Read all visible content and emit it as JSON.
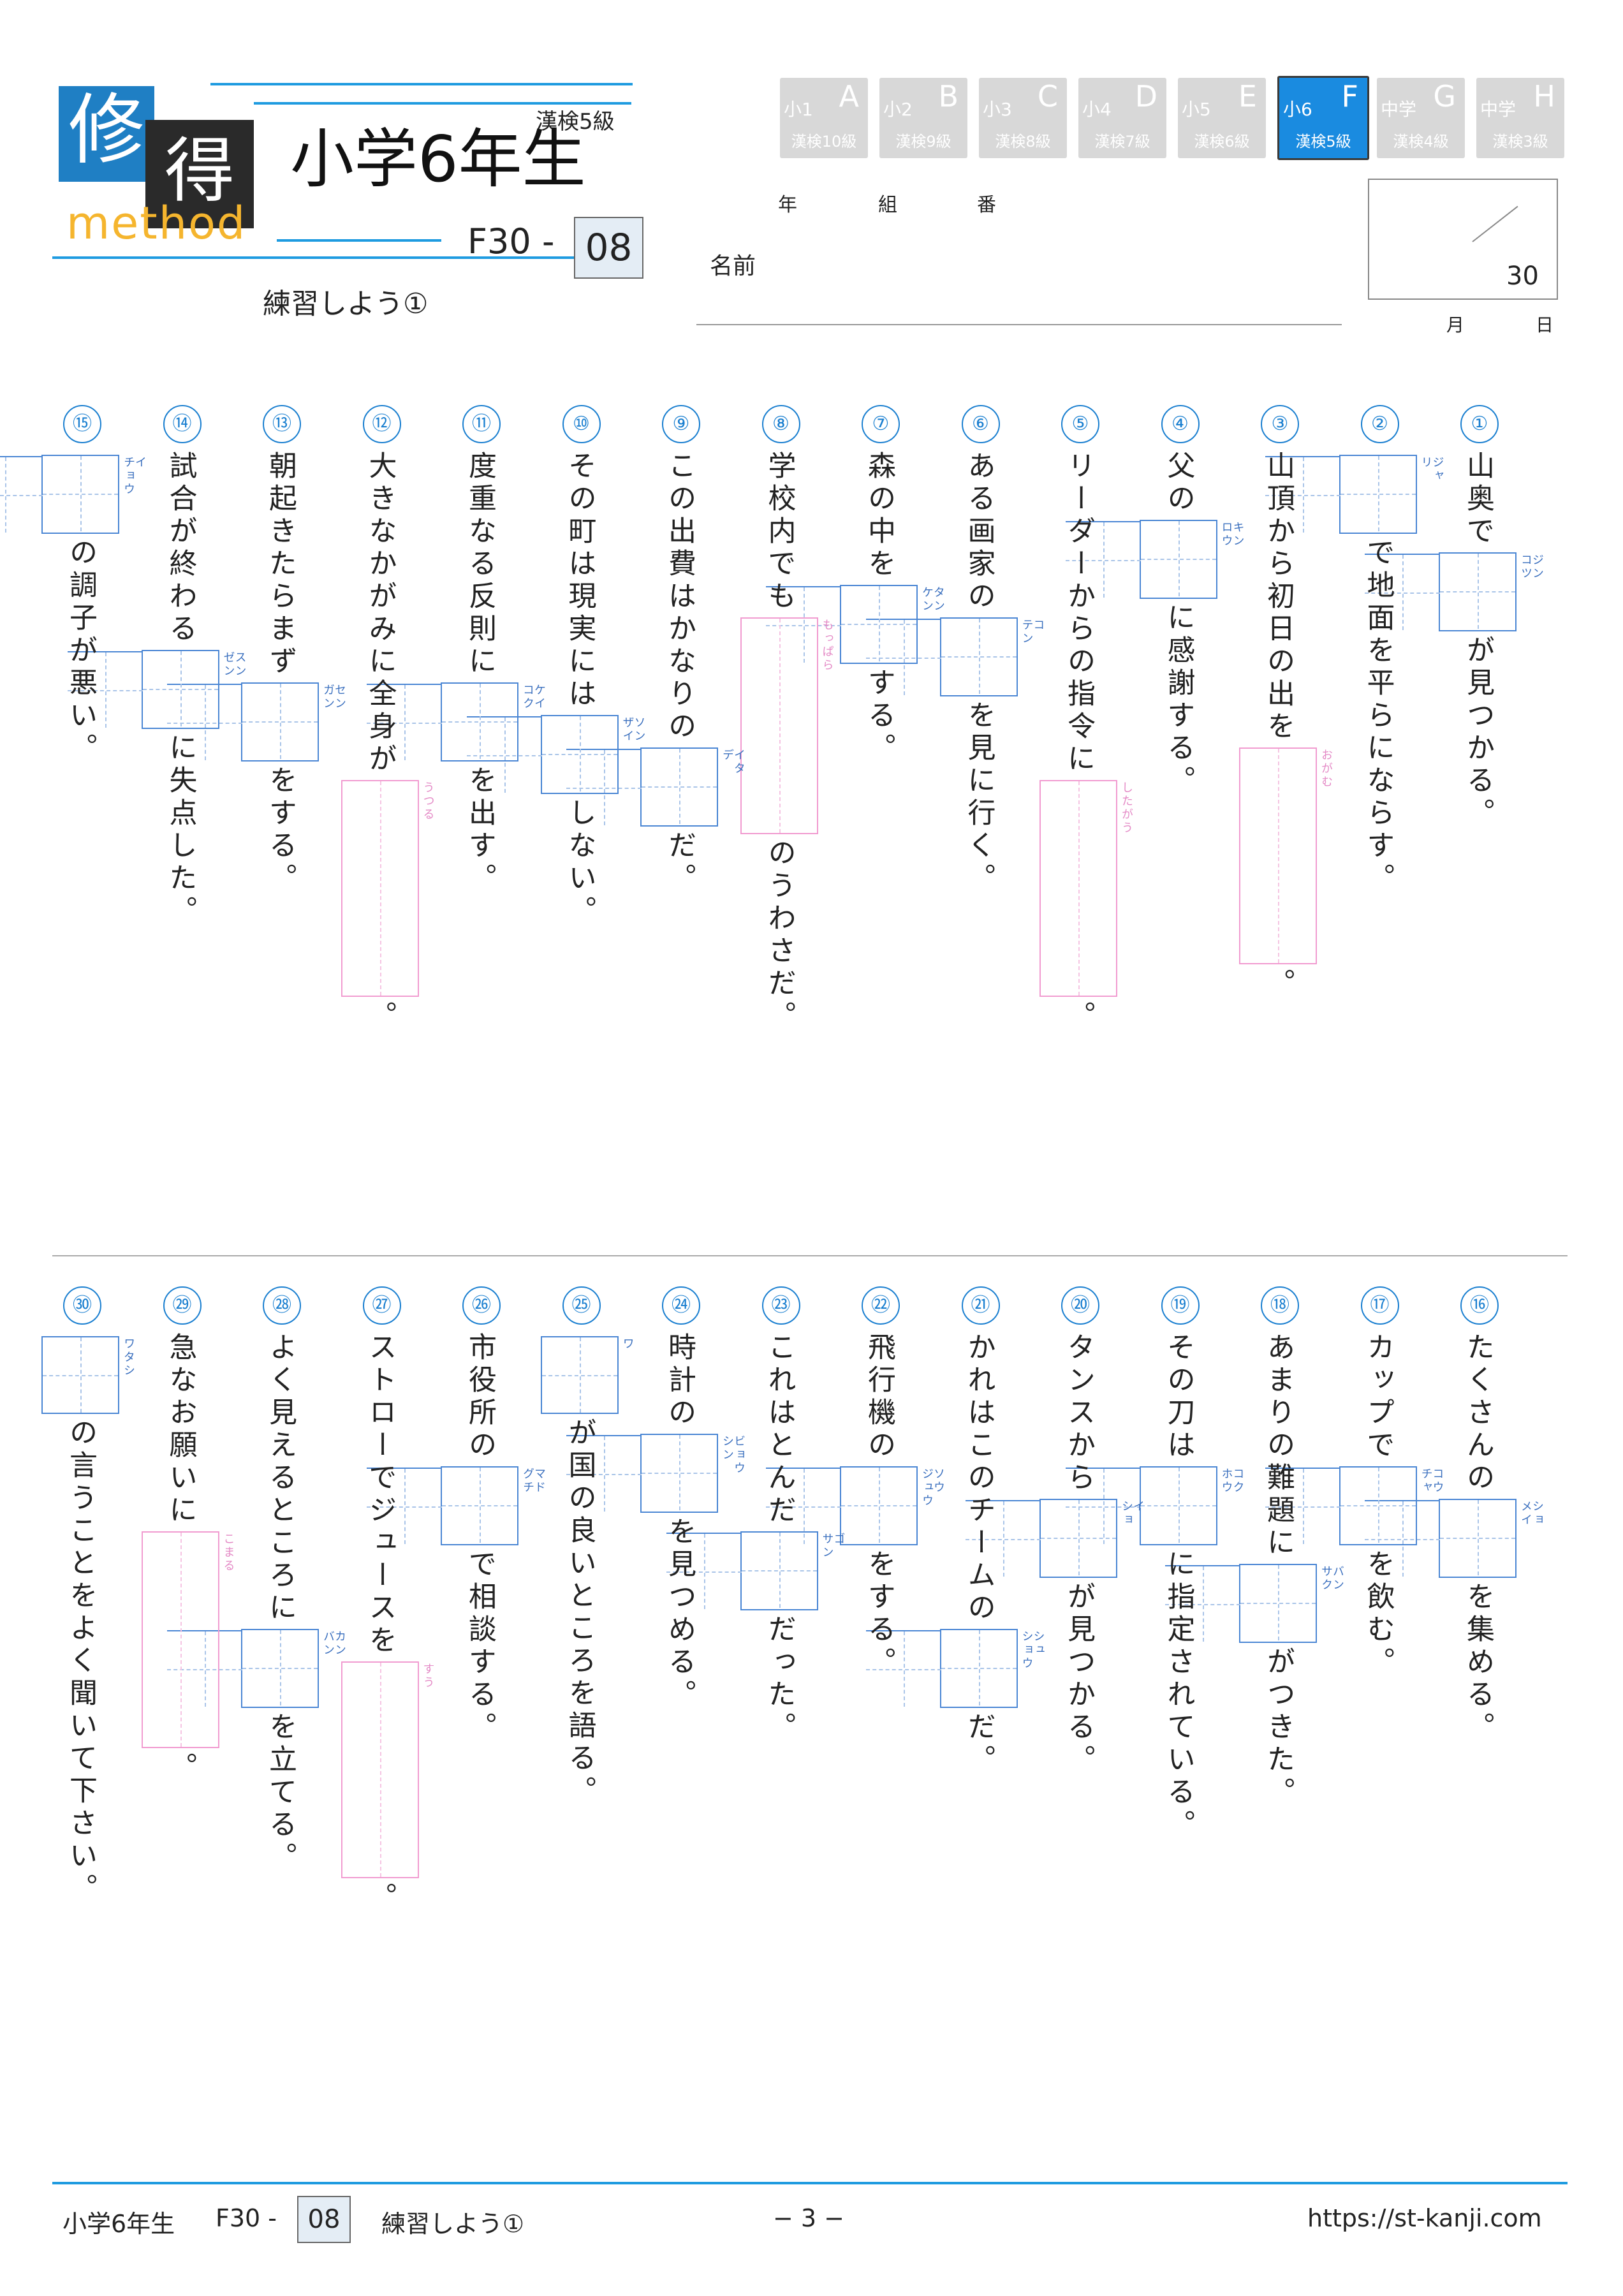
{
  "header": {
    "logo": {
      "char1": "修",
      "char2": "得",
      "word": "method"
    },
    "grade_title": "小学6年生",
    "level": "漢検5級",
    "code_prefix": "F30 -",
    "code_number": "08",
    "subtitle": "練習しよう①",
    "tabs": [
      {
        "level": "小1",
        "letter": "A",
        "kanken": "漢検10級",
        "active": false
      },
      {
        "level": "小2",
        "letter": "B",
        "kanken": "漢検9級",
        "active": false
      },
      {
        "level": "小3",
        "letter": "C",
        "kanken": "漢検8級",
        "active": false
      },
      {
        "level": "小4",
        "letter": "D",
        "kanken": "漢検7級",
        "active": false
      },
      {
        "level": "小5",
        "letter": "E",
        "kanken": "漢検6級",
        "active": false
      },
      {
        "level": "小6",
        "letter": "F",
        "kanken": "漢検5級",
        "active": true
      },
      {
        "level": "中学",
        "letter": "G",
        "kanken": "漢検4級",
        "active": false
      },
      {
        "level": "中学",
        "letter": "H",
        "kanken": "漢検3級",
        "active": false
      }
    ],
    "labels": {
      "year": "年",
      "class": "組",
      "number": "番",
      "name": "名前",
      "month": "月",
      "day": "日"
    },
    "score_total": "30"
  },
  "questions": [
    {
      "n": "①",
      "parts": [
        {
          "t": "山奥で"
        },
        {
          "box": [
            "ジン",
            "コツ"
          ]
        },
        {
          "t": "が見つかる。"
        }
      ]
    },
    {
      "n": "②",
      "parts": [
        {
          "box": [
            "ジャ",
            "リ"
          ]
        },
        {
          "t": "で地面を平らにならす。"
        }
      ]
    },
    {
      "n": "③",
      "parts": [
        {
          "t": "山頂から初日の出を"
        },
        {
          "hira": "おがむ",
          "len": 4
        },
        {
          "t": "。"
        }
      ]
    },
    {
      "n": "④",
      "parts": [
        {
          "t": "父の"
        },
        {
          "box": [
            "キン",
            "ロウ"
          ]
        },
        {
          "t": "に感謝する。"
        }
      ]
    },
    {
      "n": "⑤",
      "parts": [
        {
          "t": "リーダーからの指令に"
        },
        {
          "hira": "したがう",
          "len": 4
        },
        {
          "t": "。"
        }
      ]
    },
    {
      "n": "⑥",
      "parts": [
        {
          "t": "ある画家の"
        },
        {
          "box": [
            "コ",
            "テン"
          ]
        },
        {
          "t": "を見に行く。"
        }
      ]
    },
    {
      "n": "⑦",
      "parts": [
        {
          "t": "森の中を"
        },
        {
          "box": [
            "タン",
            "ケン"
          ]
        },
        {
          "t": "する。"
        }
      ]
    },
    {
      "n": "⑧",
      "parts": [
        {
          "t": "学校内でも"
        },
        {
          "hira": "もっぱら",
          "len": 4
        },
        {
          "t": "のうわさだ。"
        }
      ]
    },
    {
      "n": "⑨",
      "parts": [
        {
          "t": "この出費はかなりの"
        },
        {
          "box": [
            "イタ",
            "デ"
          ]
        },
        {
          "t": "だ。"
        }
      ]
    },
    {
      "n": "⑩",
      "parts": [
        {
          "t": "その町は現実には"
        },
        {
          "box": [
            "ソン",
            "ザイ"
          ]
        },
        {
          "t": "しない。"
        }
      ]
    },
    {
      "n": "⑪",
      "parts": [
        {
          "t": "度重なる反則に"
        },
        {
          "box": [
            "ケイ",
            "コク"
          ]
        },
        {
          "t": "を出す。"
        }
      ]
    },
    {
      "n": "⑫",
      "parts": [
        {
          "t": "大きなかがみに全身が"
        },
        {
          "hira": "うつる",
          "len": 4
        },
        {
          "t": "。"
        }
      ]
    },
    {
      "n": "⑬",
      "parts": [
        {
          "t": "朝起きたらまず"
        },
        {
          "box": [
            "セン",
            "ガン"
          ]
        },
        {
          "t": "をする。"
        }
      ]
    },
    {
      "n": "⑭",
      "parts": [
        {
          "t": "試合が終わる"
        },
        {
          "box": [
            "スン",
            "ゼン"
          ]
        },
        {
          "t": "に失点した。"
        }
      ]
    },
    {
      "n": "⑮",
      "parts": [
        {
          "box": [
            "イ",
            "チョウ"
          ]
        },
        {
          "t": "の調子が悪い。"
        }
      ]
    },
    {
      "n": "⑯",
      "parts": [
        {
          "t": "たくさんの"
        },
        {
          "box": [
            "ショ",
            "メイ"
          ]
        },
        {
          "t": "を集める。"
        }
      ]
    },
    {
      "n": "⑰",
      "parts": [
        {
          "t": "カップで"
        },
        {
          "box": [
            "コウ",
            "チャ"
          ]
        },
        {
          "t": "を飲む。"
        }
      ]
    },
    {
      "n": "⑱",
      "parts": [
        {
          "t": "あまりの難題に"
        },
        {
          "box": [
            "バン",
            "サク"
          ]
        },
        {
          "t": "がつきた。"
        }
      ]
    },
    {
      "n": "⑲",
      "parts": [
        {
          "t": "その刀は"
        },
        {
          "box": [
            "コク",
            "ホウ"
          ]
        },
        {
          "t": "に指定されている。"
        }
      ]
    },
    {
      "n": "⑳",
      "parts": [
        {
          "t": "タンスから"
        },
        {
          "box": [
            "イ",
            "ショ"
          ]
        },
        {
          "t": "が見つかる。"
        }
      ]
    },
    {
      "n": "㉑",
      "parts": [
        {
          "t": "かれはこのチームの"
        },
        {
          "box": [
            "シュ",
            "ショウ"
          ]
        },
        {
          "t": "だ。"
        }
      ]
    },
    {
      "n": "㉒",
      "parts": [
        {
          "t": "飛行機の"
        },
        {
          "box": [
            "ソウ",
            "ジュウ"
          ]
        },
        {
          "t": "をする。"
        }
      ]
    },
    {
      "n": "㉓",
      "parts": [
        {
          "t": "これはとんだ"
        },
        {
          "box": [
            "ゴ",
            "サン"
          ]
        },
        {
          "t": "だった。"
        }
      ]
    },
    {
      "n": "㉔",
      "parts": [
        {
          "t": "時計の"
        },
        {
          "box": [
            "ビョウ",
            "シン"
          ]
        },
        {
          "t": "を見つめる。"
        }
      ]
    },
    {
      "n": "㉕",
      "parts": [
        {
          "box": [
            "ワ"
          ]
        },
        {
          "t": "が国の良いところを語る。"
        }
      ]
    },
    {
      "n": "㉖",
      "parts": [
        {
          "t": "市役所の"
        },
        {
          "box": [
            "マド",
            "グチ"
          ]
        },
        {
          "t": "で相談する。"
        }
      ]
    },
    {
      "n": "㉗",
      "parts": [
        {
          "t": "ストローでジュースを"
        },
        {
          "hira": "すう",
          "len": 4
        },
        {
          "t": "。"
        }
      ]
    },
    {
      "n": "㉘",
      "parts": [
        {
          "t": "よく見えるところに"
        },
        {
          "box": [
            "カン",
            "バン"
          ]
        },
        {
          "t": "を立てる。"
        }
      ]
    },
    {
      "n": "㉙",
      "parts": [
        {
          "t": "急なお願いに"
        },
        {
          "hira": "こまる",
          "len": 4
        },
        {
          "t": "。"
        }
      ]
    },
    {
      "n": "㉚",
      "parts": [
        {
          "box": [
            "ワタシ"
          ]
        },
        {
          "t": "の言うことをよく聞いて下さい。"
        }
      ]
    }
  ],
  "footer": {
    "grade": "小学6年生",
    "code_prefix": "F30 -",
    "code_number": "08",
    "title": "練習しよう①",
    "page": "− 3 −",
    "url": "https://st-kanji.com"
  }
}
